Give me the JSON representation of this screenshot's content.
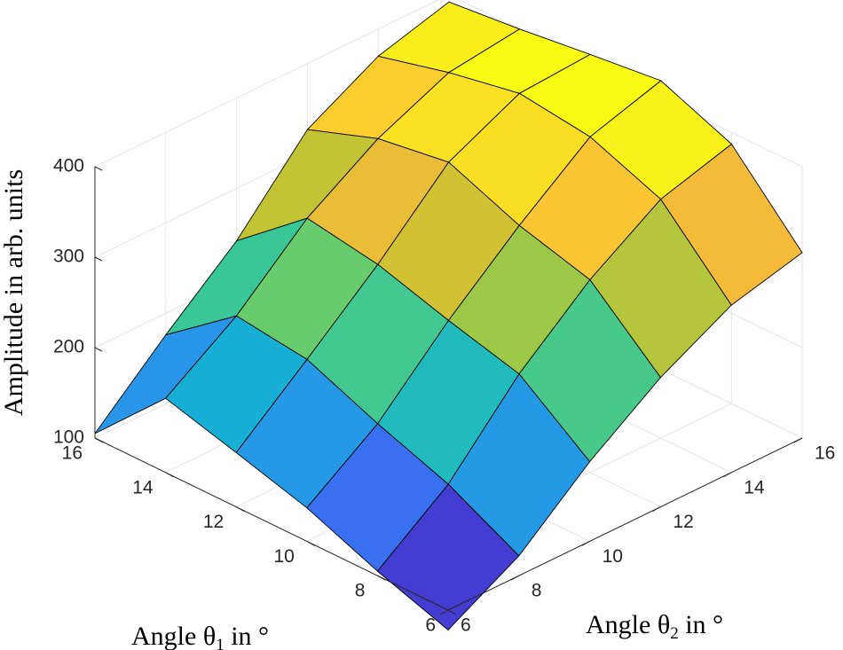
{
  "chart_data": {
    "type": "surface",
    "title": "",
    "xlabel": "Angle θ",
    "xlabel_sub": "1",
    "xlabel_suffix": " in °",
    "ylabel": "Angle θ",
    "ylabel_sub": "2",
    "ylabel_suffix": " in °",
    "zlabel": "Amplitude in arb. units",
    "theta1": [
      6,
      8,
      10,
      12,
      14,
      16
    ],
    "theta2": [
      6,
      8,
      10,
      12,
      14,
      16
    ],
    "xlim": [
      6,
      16
    ],
    "ylim": [
      6,
      16
    ],
    "zlim": [
      100,
      400
    ],
    "x_ticks": [
      "6",
      "8",
      "10",
      "12",
      "14",
      "16"
    ],
    "y_ticks": [
      "6",
      "8",
      "10",
      "12",
      "14",
      "16"
    ],
    "z_ticks": [
      "100",
      "200",
      "300",
      "400"
    ],
    "grid": true,
    "colormap": "parula",
    "z": [
      [
        78,
        122,
        188,
        243,
        285,
        305
      ],
      [
        105,
        163,
        247,
        313,
        364,
        387
      ],
      [
        137,
        192,
        268,
        335,
        395,
        419
      ],
      [
        160,
        225,
        292,
        367,
        405,
        410
      ],
      [
        182,
        235,
        305,
        355,
        390,
        400
      ],
      [
        105,
        176,
        242,
        327,
        370,
        392
      ]
    ]
  }
}
